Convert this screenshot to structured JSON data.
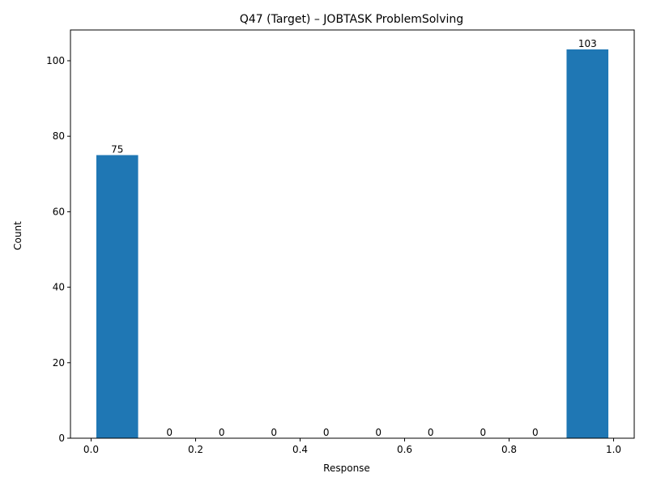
{
  "chart_data": {
    "type": "bar",
    "title": "Q47 (Target) – JOBTASK ProblemSolving",
    "xlabel": "Response",
    "ylabel": "Count",
    "xlim": [
      -0.0395,
      1.0395
    ],
    "ylim": [
      0,
      108.15
    ],
    "xticks": [
      0.0,
      0.2,
      0.4,
      0.6,
      0.8,
      1.0
    ],
    "xtick_labels": [
      "0.0",
      "0.2",
      "0.4",
      "0.6",
      "0.8",
      "1.0"
    ],
    "yticks": [
      0,
      20,
      40,
      60,
      80,
      100
    ],
    "ytick_labels": [
      "0",
      "20",
      "40",
      "60",
      "80",
      "100"
    ],
    "bin_width": 0.1,
    "bar_fraction": 0.8,
    "bars": [
      {
        "x": 0.05,
        "value": 75,
        "label": "75"
      },
      {
        "x": 0.15,
        "value": 0,
        "label": "0"
      },
      {
        "x": 0.25,
        "value": 0,
        "label": "0"
      },
      {
        "x": 0.35,
        "value": 0,
        "label": "0"
      },
      {
        "x": 0.45,
        "value": 0,
        "label": "0"
      },
      {
        "x": 0.55,
        "value": 0,
        "label": "0"
      },
      {
        "x": 0.65,
        "value": 0,
        "label": "0"
      },
      {
        "x": 0.75,
        "value": 0,
        "label": "0"
      },
      {
        "x": 0.85,
        "value": 0,
        "label": "0"
      },
      {
        "x": 0.95,
        "value": 103,
        "label": "103"
      }
    ],
    "bar_color": "#1f77b4",
    "grid": false,
    "legend": "none"
  }
}
